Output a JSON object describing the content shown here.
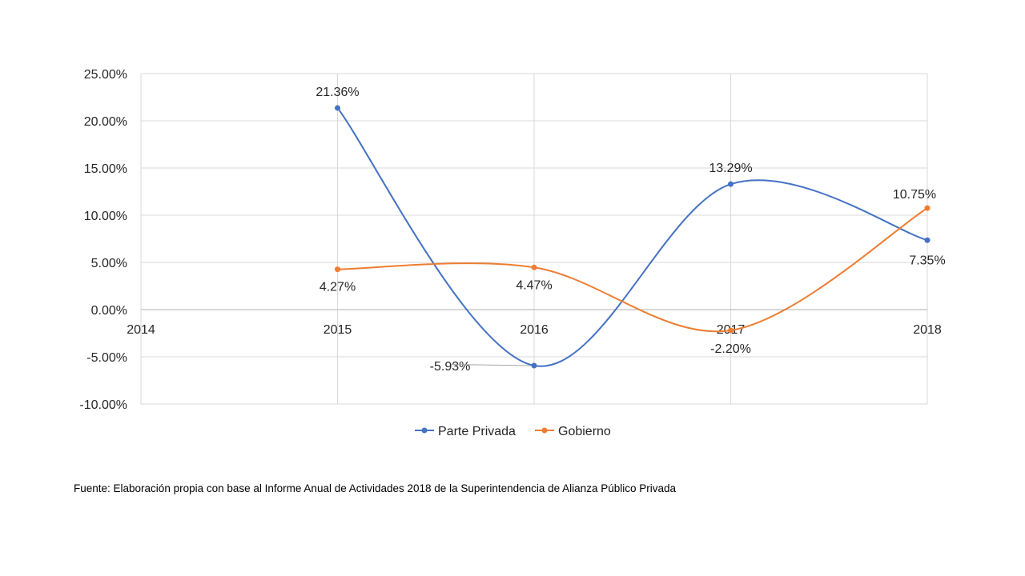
{
  "chart_data": {
    "type": "line",
    "title": "",
    "xlabel": "",
    "ylabel": "",
    "x": [
      "2014",
      "2015",
      "2016",
      "2017",
      "2018"
    ],
    "ylim": [
      -0.1,
      0.25
    ],
    "yticks": [
      "25.00%",
      "20.00%",
      "15.00%",
      "10.00%",
      "5.00%",
      "0.00%",
      "-5.00%",
      "-10.00%"
    ],
    "ytick_values": [
      0.25,
      0.2,
      0.15,
      0.1,
      0.05,
      0.0,
      -0.05,
      -0.1
    ],
    "grid": true,
    "smooth": true,
    "legend_position": "bottom",
    "series": [
      {
        "name": "Parte Privada",
        "color": "#4472C4",
        "x": [
          "2015",
          "2016",
          "2017",
          "2018"
        ],
        "values": [
          0.2136,
          -0.0593,
          0.1329,
          0.0735
        ],
        "labels": [
          "21.36%",
          "-5.93%",
          "13.29%",
          "7.35%"
        ]
      },
      {
        "name": "Gobierno",
        "color": "#ED7D31",
        "x": [
          "2015",
          "2016",
          "2017",
          "2018"
        ],
        "values": [
          0.0427,
          0.0447,
          -0.022,
          0.1075
        ],
        "labels": [
          "4.27%",
          "4.47%",
          "-2.20%",
          "10.75%"
        ]
      }
    ]
  },
  "source_note": "Fuente: Elaboración propia con base al Informe Anual de Actividades 2018 de la Superintendencia de Alianza Público Privada"
}
